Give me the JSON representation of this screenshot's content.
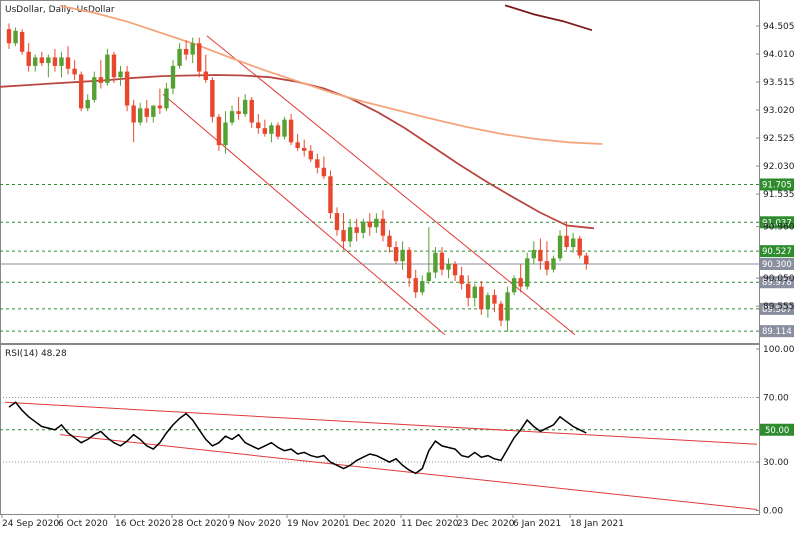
{
  "chart_data": [
    {
      "type": "candlestick",
      "title": "UsDollar, Daily:  UsDollar",
      "ylim": [
        89.05,
        94.87
      ],
      "yticks": [
        "94.505",
        "94.010",
        "93.515",
        "93.020",
        "92.525",
        "92.030",
        "91.535",
        "90.960",
        "90.050",
        "89.555"
      ],
      "xticks": [
        "24 Sep 2020",
        "6 Oct 2020",
        "16 Oct 2020",
        "28 Oct 2020",
        "9 Nov 2020",
        "19 Nov 2020",
        "1 Dec 2020",
        "11 Dec 2020",
        "23 Dec 2020",
        "6 Jan 2021",
        "18 Jan 2021"
      ],
      "up_color": "#55a033",
      "down_color": "#e8472e",
      "ohlc": [
        [
          94.45,
          94.55,
          94.1,
          94.2
        ],
        [
          94.2,
          94.48,
          94.15,
          94.42
        ],
        [
          94.4,
          94.45,
          94.0,
          94.05
        ],
        [
          94.05,
          94.2,
          93.7,
          93.8
        ],
        [
          93.8,
          94.0,
          93.7,
          93.95
        ],
        [
          93.95,
          94.05,
          93.8,
          93.85
        ],
        [
          93.85,
          94.0,
          93.6,
          93.95
        ],
        [
          93.95,
          94.1,
          93.7,
          93.8
        ],
        [
          93.8,
          94.05,
          93.6,
          93.95
        ],
        [
          93.95,
          94.15,
          93.65,
          93.75
        ],
        [
          93.75,
          93.9,
          93.55,
          93.65
        ],
        [
          93.65,
          93.7,
          93.0,
          93.05
        ],
        [
          93.05,
          93.3,
          93.0,
          93.2
        ],
        [
          93.2,
          93.7,
          93.15,
          93.6
        ],
        [
          93.6,
          93.9,
          93.4,
          93.5
        ],
        [
          93.5,
          94.1,
          93.45,
          94.0
        ],
        [
          94.0,
          94.05,
          93.5,
          93.6
        ],
        [
          93.6,
          93.8,
          93.45,
          93.7
        ],
        [
          93.7,
          93.8,
          93.0,
          93.1
        ],
        [
          93.1,
          93.2,
          92.45,
          92.8
        ],
        [
          92.8,
          93.15,
          92.75,
          93.05
        ],
        [
          93.05,
          93.2,
          92.8,
          92.9
        ],
        [
          92.9,
          93.1,
          92.8,
          93.1
        ],
        [
          93.1,
          93.4,
          92.95,
          93.05
        ],
        [
          93.05,
          93.5,
          93.0,
          93.4
        ],
        [
          93.4,
          93.9,
          93.3,
          93.8
        ],
        [
          93.8,
          94.2,
          93.75,
          94.1
        ],
        [
          94.1,
          94.25,
          93.9,
          94.0
        ],
        [
          94.0,
          94.3,
          93.85,
          94.2
        ],
        [
          94.2,
          94.3,
          93.6,
          93.7
        ],
        [
          93.7,
          94.0,
          93.5,
          93.55
        ],
        [
          93.55,
          93.6,
          92.8,
          92.9
        ],
        [
          92.9,
          92.95,
          92.3,
          92.4
        ],
        [
          92.4,
          93.0,
          92.25,
          92.8
        ],
        [
          92.8,
          93.1,
          92.75,
          93.0
        ],
        [
          93.0,
          93.25,
          92.85,
          92.95
        ],
        [
          92.95,
          93.3,
          92.9,
          93.2
        ],
        [
          93.2,
          93.25,
          92.7,
          92.8
        ],
        [
          92.8,
          92.95,
          92.6,
          92.7
        ],
        [
          92.7,
          92.85,
          92.55,
          92.6
        ],
        [
          92.6,
          92.8,
          92.45,
          92.75
        ],
        [
          92.75,
          92.8,
          92.5,
          92.55
        ],
        [
          92.55,
          92.9,
          92.5,
          92.85
        ],
        [
          92.85,
          92.95,
          92.4,
          92.45
        ],
        [
          92.45,
          92.6,
          92.3,
          92.35
        ],
        [
          92.35,
          92.5,
          92.2,
          92.3
        ],
        [
          92.3,
          92.4,
          92.1,
          92.15
        ],
        [
          92.15,
          92.25,
          91.9,
          92.0
        ],
        [
          92.0,
          92.2,
          91.8,
          91.85
        ],
        [
          91.85,
          91.95,
          91.1,
          91.2
        ],
        [
          91.2,
          91.3,
          90.8,
          90.9
        ],
        [
          90.9,
          91.2,
          90.55,
          90.7
        ],
        [
          90.7,
          91.1,
          90.6,
          90.95
        ],
        [
          90.95,
          91.1,
          90.7,
          90.85
        ],
        [
          90.85,
          91.1,
          90.75,
          91.05
        ],
        [
          91.05,
          91.2,
          90.8,
          90.95
        ],
        [
          90.95,
          91.2,
          90.85,
          91.1
        ],
        [
          91.1,
          91.25,
          90.7,
          90.8
        ],
        [
          90.8,
          90.9,
          90.5,
          90.6
        ],
        [
          90.6,
          90.7,
          90.3,
          90.35
        ],
        [
          90.35,
          90.7,
          90.2,
          90.55
        ],
        [
          90.55,
          90.6,
          89.9,
          90.05
        ],
        [
          90.05,
          90.2,
          89.7,
          89.8
        ],
        [
          89.8,
          90.1,
          89.75,
          90.0
        ],
        [
          90.0,
          90.95,
          89.95,
          90.15
        ],
        [
          90.15,
          90.6,
          90.05,
          90.5
        ],
        [
          90.5,
          90.6,
          90.1,
          90.2
        ],
        [
          90.2,
          90.4,
          90.05,
          90.3
        ],
        [
          90.3,
          90.35,
          90.0,
          90.1
        ],
        [
          90.1,
          90.25,
          89.85,
          89.95
        ],
        [
          89.95,
          90.1,
          89.55,
          89.7
        ],
        [
          89.7,
          89.95,
          89.55,
          89.9
        ],
        [
          89.9,
          90.0,
          89.4,
          89.5
        ],
        [
          89.5,
          89.8,
          89.35,
          89.75
        ],
        [
          89.75,
          89.85,
          89.45,
          89.6
        ],
        [
          89.6,
          89.65,
          89.2,
          89.3
        ],
        [
          89.3,
          89.9,
          89.1,
          89.8
        ],
        [
          89.8,
          90.1,
          89.75,
          90.05
        ],
        [
          90.05,
          90.3,
          89.8,
          89.9
        ],
        [
          89.9,
          90.5,
          89.85,
          90.4
        ],
        [
          90.4,
          90.7,
          90.3,
          90.55
        ],
        [
          90.55,
          90.75,
          90.2,
          90.35
        ],
        [
          90.35,
          90.7,
          90.1,
          90.2
        ],
        [
          90.2,
          90.45,
          90.15,
          90.4
        ],
        [
          90.4,
          90.9,
          90.35,
          90.8
        ],
        [
          90.8,
          91.05,
          90.55,
          90.6
        ],
        [
          90.6,
          90.85,
          90.5,
          90.75
        ],
        [
          90.75,
          90.8,
          90.4,
          90.45
        ],
        [
          90.45,
          90.5,
          90.2,
          90.3
        ]
      ],
      "moving_averages": [
        {
          "color": "#b94640",
          "values": [
            93.43,
            93.46,
            93.49,
            93.52,
            93.55,
            93.59,
            93.62,
            93.63,
            93.64,
            93.63,
            93.6,
            93.52,
            93.4,
            93.22,
            92.98,
            92.7,
            92.38,
            92.06,
            91.76,
            91.48,
            91.21,
            90.98,
            90.93
          ]
        },
        {
          "color": "#f5a57c",
          "values": [
            94.86,
            94.74,
            94.58,
            94.38,
            94.18,
            93.95,
            93.73,
            93.53,
            93.33,
            93.16,
            93.01,
            92.86,
            92.72,
            92.6,
            92.51,
            92.45,
            92.42
          ]
        },
        {
          "color": "#7b1a1a",
          "values": [
            94.87,
            94.71,
            94.59,
            94.43
          ]
        }
      ],
      "channel": {
        "color": "#e03a3a",
        "upper": [
          [
            94.33,
            89.05
          ]
        ],
        "lower": [
          [
            93.3,
            89.05
          ]
        ]
      },
      "levels": [
        {
          "value": 91.705,
          "label": "91.705",
          "style": "dashed",
          "box": true
        },
        {
          "value": 91.037,
          "label": "91.037",
          "style": "dashed",
          "box": true
        },
        {
          "value": 90.527,
          "label": "90.527",
          "style": "dashed",
          "box": true
        },
        {
          "value": 90.3,
          "label": "90.300",
          "style": "solid",
          "box": true
        },
        {
          "value": 89.978,
          "label": "89.978",
          "style": "dashed",
          "box": true
        },
        {
          "value": 89.507,
          "label": "89.507",
          "style": "dashed",
          "box": true
        },
        {
          "value": 89.114,
          "label": "89.114",
          "style": "dashed",
          "box": true
        }
      ]
    },
    {
      "type": "line",
      "title": "RSI(14) 48.28",
      "ylim": [
        0,
        100
      ],
      "yticks": [
        "100.00",
        "70.00",
        "30.00",
        "0.00"
      ],
      "levels": [
        {
          "value": 70,
          "style": "dotted"
        },
        {
          "value": 50,
          "label": "50.00",
          "style": "dashed",
          "box": true
        },
        {
          "value": 30,
          "style": "dotted"
        }
      ],
      "values": [
        64,
        67,
        62,
        58,
        55,
        52,
        51,
        50,
        53,
        48,
        45,
        42,
        44,
        47,
        49,
        45,
        42,
        40,
        43,
        47,
        44,
        40,
        38,
        42,
        48,
        53,
        57,
        60,
        56,
        50,
        44,
        40,
        42,
        46,
        44,
        47,
        42,
        40,
        38,
        40,
        42,
        39,
        37,
        38,
        35,
        36,
        34,
        33,
        34,
        30,
        28,
        26,
        28,
        31,
        33,
        35,
        34,
        32,
        30,
        32,
        28,
        25,
        23,
        26,
        37,
        43,
        40,
        39,
        38,
        34,
        33,
        36,
        33,
        34,
        32,
        31,
        38,
        45,
        50,
        56,
        52,
        49,
        51,
        53,
        58,
        55,
        52,
        50,
        48
      ],
      "trendlines": {
        "color": "#e03a3a",
        "upper": [
          [
            67,
            41,
            1.0
          ]
        ],
        "lower": [
          [
            47,
            0,
            1.0
          ]
        ]
      }
    }
  ]
}
